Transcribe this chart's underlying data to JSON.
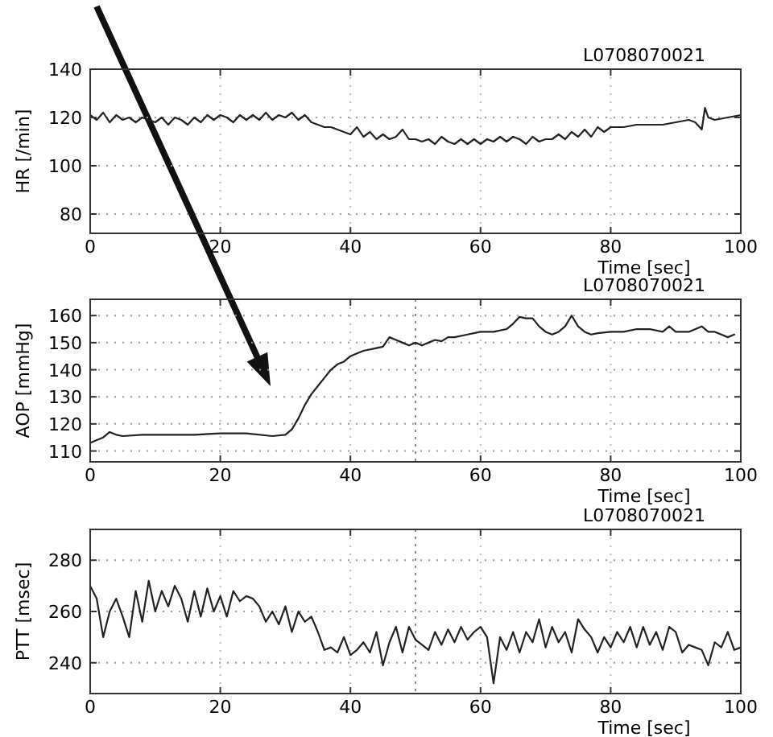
{
  "chart_data": [
    {
      "type": "line",
      "title": "L0708070021",
      "xlabel": "Time [sec]",
      "ylabel": "HR [/min]",
      "xlim": [
        0,
        100
      ],
      "xticks": [
        0,
        20,
        40,
        60,
        80,
        100
      ],
      "ylim": [
        72,
        140
      ],
      "yticks": [
        80,
        100,
        120,
        140
      ],
      "grid": true,
      "line_style": "solid",
      "marker": "none",
      "series": [
        {
          "color": "#222222",
          "x": [
            0,
            1,
            2,
            3,
            4,
            5,
            6,
            7,
            8,
            9,
            10,
            11,
            12,
            13,
            14,
            15,
            16,
            17,
            18,
            19,
            20,
            21,
            22,
            23,
            24,
            25,
            26,
            27,
            28,
            29,
            30,
            31,
            32,
            33,
            34,
            35,
            36,
            37,
            38,
            39,
            40,
            41,
            42,
            43,
            44,
            45,
            46,
            47,
            48,
            49,
            50,
            51,
            52,
            53,
            54,
            55,
            56,
            57,
            58,
            59,
            60,
            61,
            62,
            63,
            64,
            65,
            66,
            67,
            68,
            69,
            70,
            71,
            72,
            73,
            74,
            75,
            76,
            77,
            78,
            79,
            80,
            82,
            84,
            86,
            88,
            90,
            92,
            93,
            94,
            94.5,
            95,
            96,
            98,
            100
          ],
          "values": [
            121,
            119,
            122,
            118,
            121,
            119,
            120,
            118,
            120,
            119,
            118,
            120,
            117,
            120,
            119,
            117,
            120,
            118,
            121,
            119,
            121,
            120,
            118,
            121,
            119,
            121,
            119,
            122,
            119,
            121,
            120,
            122,
            119,
            121,
            118,
            117,
            116,
            116,
            115,
            114,
            113,
            116,
            112,
            114,
            111,
            113,
            111,
            112,
            115,
            111,
            111,
            110,
            111,
            109,
            112,
            110,
            109,
            111,
            109,
            111,
            109,
            111,
            110,
            112,
            110,
            112,
            111,
            109,
            112,
            110,
            111,
            111,
            113,
            111,
            114,
            112,
            115,
            112,
            116,
            114,
            116,
            116,
            117,
            117,
            117,
            118,
            119,
            118,
            115,
            124,
            120,
            119,
            120,
            121
          ]
        }
      ]
    },
    {
      "type": "line",
      "title": "L0708070021",
      "xlabel": "Time [sec]",
      "ylabel": "AOP [mmHg]",
      "xlim": [
        0,
        100
      ],
      "xticks": [
        0,
        20,
        40,
        60,
        80,
        100
      ],
      "ylim": [
        106,
        166
      ],
      "yticks": [
        110,
        120,
        130,
        140,
        150,
        160
      ],
      "grid": true,
      "line_style": "solid",
      "marker": "none",
      "ref_lines": [
        {
          "axis": "x",
          "value": 50,
          "line_style": "dotted"
        }
      ],
      "series": [
        {
          "color": "#222222",
          "x": [
            0,
            1,
            2,
            3,
            4,
            5,
            8,
            12,
            16,
            20,
            24,
            28,
            30,
            31,
            32,
            33,
            34,
            35,
            36,
            37,
            38,
            39,
            40,
            41,
            42,
            44,
            45,
            46,
            47,
            48,
            49,
            50,
            51,
            52,
            53,
            54,
            55,
            56,
            58,
            60,
            62,
            64,
            65,
            66,
            67,
            68,
            69,
            70,
            71,
            72,
            73,
            74,
            75,
            76,
            77,
            78,
            80,
            82,
            84,
            86,
            88,
            89,
            90,
            92,
            94,
            95,
            96,
            97,
            98,
            99
          ],
          "values": [
            113,
            114,
            115,
            117,
            116,
            115.5,
            116,
            116,
            116,
            116.5,
            116.5,
            115.5,
            116,
            118,
            122,
            127,
            131,
            134,
            137,
            140,
            142,
            143,
            145,
            146,
            147,
            148,
            148.5,
            152,
            151,
            150,
            149,
            150,
            149,
            150,
            151,
            150.5,
            152,
            152,
            153,
            154,
            154,
            155,
            157,
            159.5,
            159,
            159,
            156,
            154,
            153,
            154,
            156,
            160,
            156,
            154,
            153,
            153.5,
            154,
            154,
            155,
            155,
            154,
            156,
            154,
            154,
            156,
            154,
            154,
            153,
            152,
            153
          ]
        }
      ]
    },
    {
      "type": "line",
      "title": "L0708070021",
      "xlabel": "Time [sec]",
      "ylabel": "PTT [msec]",
      "xlim": [
        0,
        100
      ],
      "xticks": [
        0,
        20,
        40,
        60,
        80,
        100
      ],
      "ylim": [
        228,
        292
      ],
      "yticks": [
        240,
        260,
        280
      ],
      "grid": true,
      "line_style": "solid",
      "marker": "none",
      "ref_lines": [
        {
          "axis": "x",
          "value": 50,
          "line_style": "dotted"
        }
      ],
      "series": [
        {
          "color": "#222222",
          "x": [
            0,
            1,
            2,
            3,
            4,
            5,
            6,
            7,
            8,
            9,
            10,
            11,
            12,
            13,
            14,
            15,
            16,
            17,
            18,
            19,
            20,
            21,
            22,
            23,
            24,
            25,
            26,
            27,
            28,
            29,
            30,
            31,
            32,
            33,
            34,
            35,
            36,
            37,
            38,
            39,
            40,
            41,
            42,
            43,
            44,
            45,
            46,
            47,
            48,
            49,
            50,
            51,
            52,
            53,
            54,
            55,
            56,
            57,
            58,
            59,
            60,
            61,
            62,
            63,
            64,
            65,
            66,
            67,
            68,
            69,
            70,
            71,
            72,
            73,
            74,
            75,
            76,
            77,
            78,
            79,
            80,
            81,
            82,
            83,
            84,
            85,
            86,
            87,
            88,
            89,
            90,
            91,
            92,
            93,
            94,
            95,
            96,
            97,
            98,
            99,
            100
          ],
          "values": [
            270,
            265,
            250,
            260,
            265,
            258,
            250,
            268,
            256,
            272,
            260,
            268,
            262,
            270,
            265,
            256,
            268,
            258,
            269,
            260,
            266,
            258,
            268,
            264,
            266,
            265,
            262,
            256,
            260,
            255,
            262,
            252,
            260,
            256,
            258,
            252,
            245,
            246,
            244,
            250,
            243,
            245,
            248,
            244,
            252,
            239,
            248,
            254,
            244,
            254,
            249,
            247,
            245,
            252,
            247,
            253,
            248,
            254,
            249,
            252,
            254,
            250,
            232,
            250,
            245,
            252,
            244,
            252,
            248,
            257,
            246,
            254,
            248,
            252,
            244,
            257,
            253,
            250,
            244,
            250,
            246,
            252,
            248,
            254,
            246,
            254,
            247,
            252,
            245,
            254,
            252,
            244,
            247,
            246,
            245,
            239,
            248,
            246,
            252,
            245,
            246
          ]
        }
      ]
    }
  ]
}
